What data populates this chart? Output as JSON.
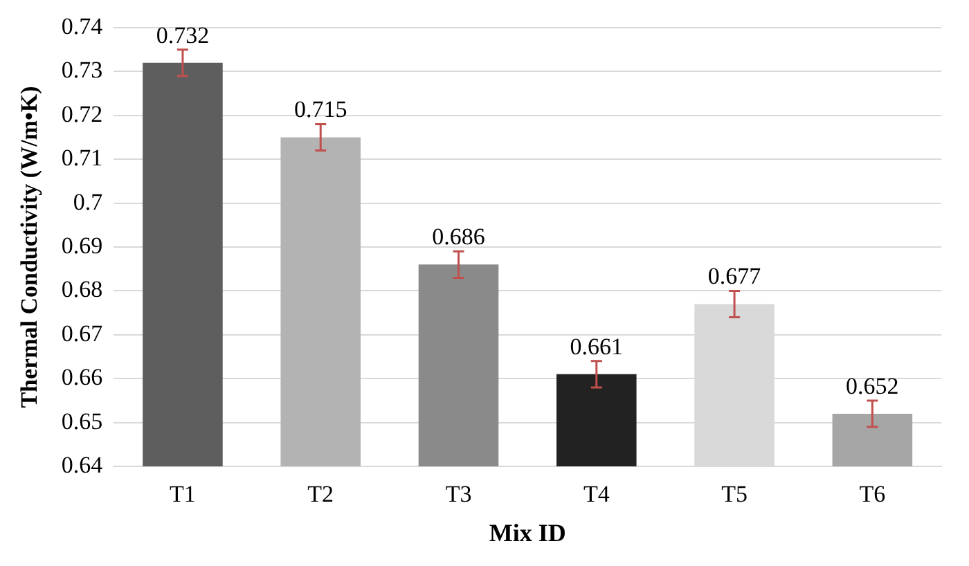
{
  "chart_data": {
    "type": "bar",
    "xlabel": "Mix ID",
    "ylabel": "Thermal Conductivity (W/m•K)",
    "categories": [
      "T1",
      "T2",
      "T3",
      "T4",
      "T5",
      "T6"
    ],
    "values": [
      0.732,
      0.715,
      0.686,
      0.661,
      0.677,
      0.652
    ],
    "colors": [
      "#5e5e5e",
      "#b3b3b3",
      "#8a8a8a",
      "#222222",
      "#d9d9d9",
      "#a6a6a6"
    ],
    "errors": [
      0.003,
      0.003,
      0.003,
      0.003,
      0.003,
      0.003
    ],
    "data_labels": true,
    "ylim": [
      0.64,
      0.74
    ],
    "yticks": [
      0.64,
      0.65,
      0.66,
      0.67,
      0.68,
      0.69,
      0.7,
      0.71,
      0.72,
      0.73,
      0.74
    ],
    "grid": "y",
    "legend": false
  }
}
